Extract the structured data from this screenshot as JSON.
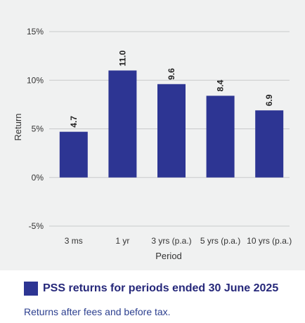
{
  "chart_data": {
    "type": "bar",
    "title": "PSS returns for periods ended 30 June 2025",
    "subtitle": "Returns after fees and before tax.",
    "xlabel": "Period",
    "ylabel": "Return",
    "categories": [
      "3 ms",
      "1 yr",
      "3 yrs (p.a.)",
      "5 yrs (p.a.)",
      "10 yrs (p.a.)"
    ],
    "series": [
      {
        "name": "PSS returns for periods ended 30 June 2025",
        "values": [
          4.7,
          11.0,
          9.6,
          8.4,
          6.9
        ],
        "data_labels": [
          "4.7",
          "11.0",
          "9.6",
          "8.4",
          "6.9"
        ]
      }
    ],
    "ylim": [
      -5,
      15
    ],
    "yticks": [
      15,
      10,
      5,
      0,
      -5
    ],
    "ytick_labels": [
      "15%",
      "10%",
      "5%",
      "0%",
      "-5%"
    ],
    "grid": true,
    "legend_position": "bottom-left",
    "colors": {
      "bar": "#2d3593",
      "grid": "#c9cacb",
      "panel_background": "#f0f1f1",
      "legend_text": "#26287a",
      "footnote_text": "#2c3f8f"
    }
  }
}
